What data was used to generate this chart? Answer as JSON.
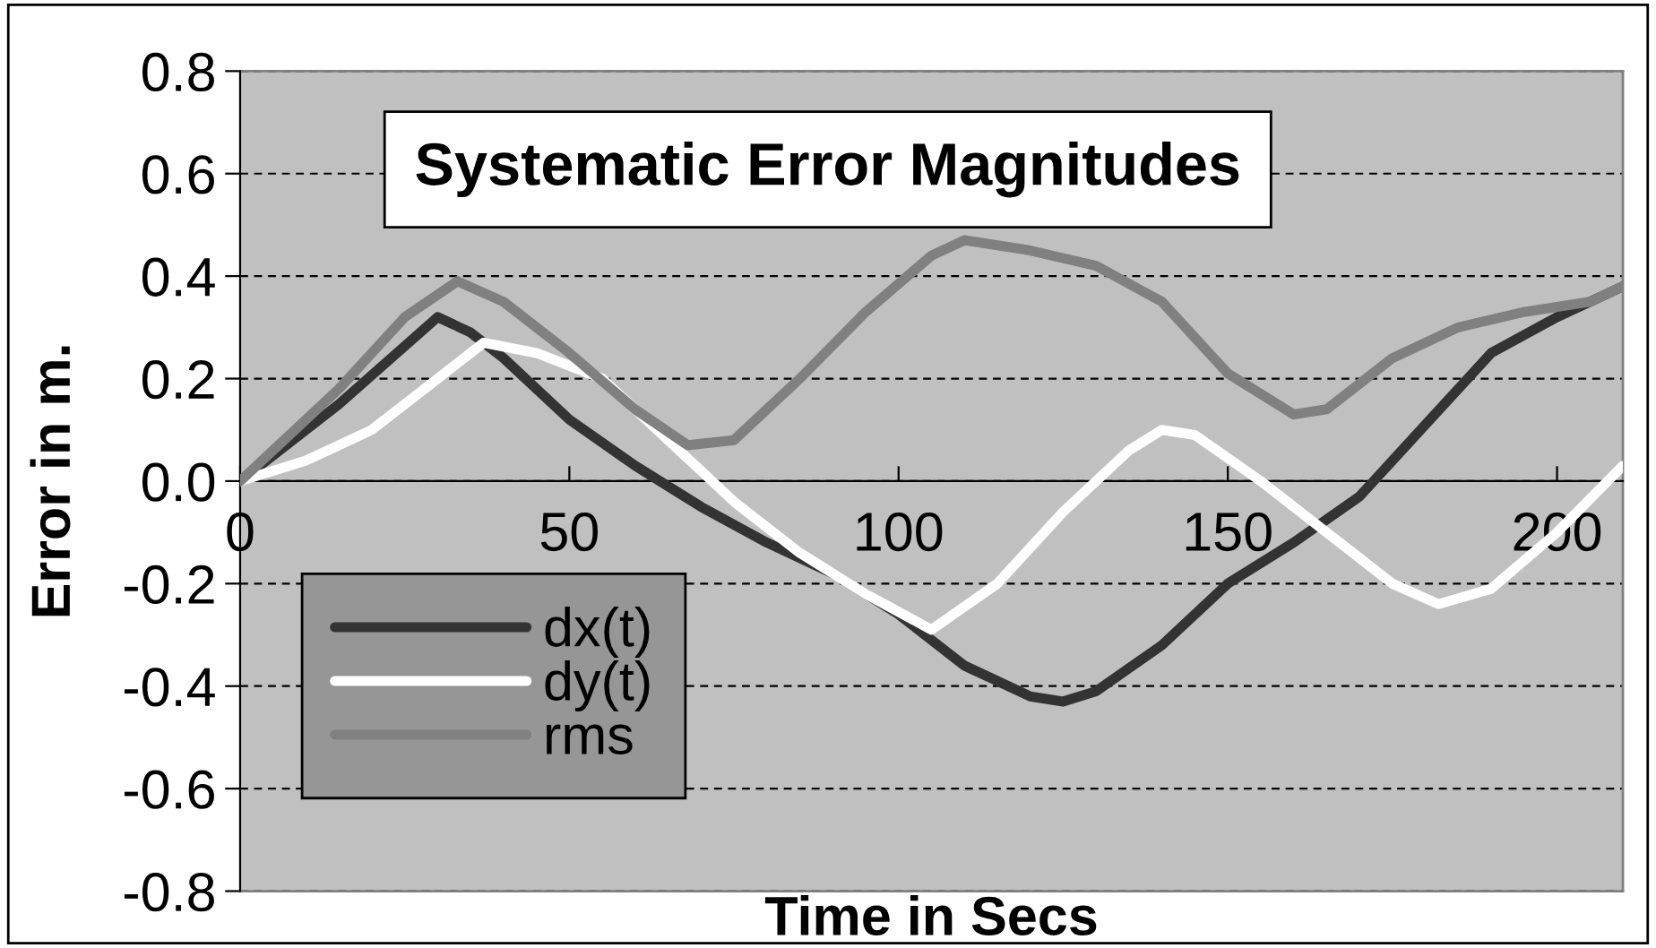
{
  "chart_data": {
    "type": "line",
    "title": "Systematic Error Magnitudes",
    "xlabel": "Time in Secs",
    "ylabel": "Error in m.",
    "xlim": [
      0,
      210
    ],
    "xticks": [
      0,
      50,
      100,
      150,
      200
    ],
    "ylim": [
      -0.8,
      0.8
    ],
    "yticks": [
      {
        "value": -0.8,
        "label": "-0.8"
      },
      {
        "value": -0.6,
        "label": "-0.6"
      },
      {
        "value": -0.4,
        "label": "-0.4"
      },
      {
        "value": -0.2,
        "label": "-0.2"
      },
      {
        "value": 0,
        "label": "0.0"
      },
      {
        "value": 0.2,
        "label": "0.2"
      },
      {
        "value": 0.4,
        "label": "0.4"
      },
      {
        "value": 0.6,
        "label": "0.6"
      },
      {
        "value": 0.8,
        "label": "0.8"
      }
    ],
    "grid": "y",
    "legend": "bottom left",
    "marker": "none",
    "line_style": "solid",
    "series": [
      {
        "name": "dx(t)",
        "color": "#333333",
        "x": [
          0,
          15,
          30,
          35,
          40,
          50,
          60,
          70,
          80,
          90,
          100,
          110,
          120,
          125,
          130,
          140,
          150,
          160,
          170,
          180,
          190,
          200,
          210
        ],
        "values": [
          0,
          0.15,
          0.32,
          0.29,
          0.24,
          0.12,
          0.03,
          -0.05,
          -0.12,
          -0.18,
          -0.26,
          -0.36,
          -0.42,
          -0.43,
          -0.41,
          -0.32,
          -0.2,
          -0.12,
          -0.03,
          0.11,
          0.25,
          0.32,
          0.38
        ]
      },
      {
        "name": "dy(t)",
        "color": "#ffffff",
        "x": [
          0,
          10,
          20,
          30,
          37,
          45,
          55,
          65,
          75,
          85,
          95,
          105,
          115,
          125,
          135,
          140,
          145,
          155,
          165,
          175,
          182,
          190,
          200,
          210
        ],
        "values": [
          0,
          0.04,
          0.1,
          0.2,
          0.27,
          0.25,
          0.2,
          0.08,
          -0.04,
          -0.14,
          -0.22,
          -0.29,
          -0.2,
          -0.06,
          0.06,
          0.1,
          0.09,
          0.0,
          -0.1,
          -0.2,
          -0.24,
          -0.21,
          -0.1,
          0.03
        ]
      },
      {
        "name": "rms",
        "color": "#808080",
        "x": [
          0,
          15,
          25,
          33,
          40,
          50,
          60,
          68,
          75,
          85,
          95,
          105,
          110,
          120,
          130,
          140,
          150,
          160,
          165,
          175,
          185,
          195,
          205,
          210
        ],
        "values": [
          0,
          0.18,
          0.32,
          0.39,
          0.35,
          0.25,
          0.14,
          0.07,
          0.08,
          0.2,
          0.33,
          0.44,
          0.47,
          0.45,
          0.42,
          0.35,
          0.21,
          0.13,
          0.14,
          0.24,
          0.3,
          0.33,
          0.35,
          0.38
        ]
      }
    ]
  }
}
